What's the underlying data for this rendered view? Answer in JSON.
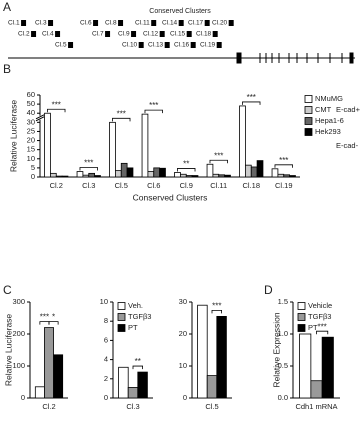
{
  "panel_labels": [
    "A",
    "B",
    "C",
    "D"
  ],
  "diagram": {
    "title": "Conserved Clusters",
    "clusters": [
      "Cl.1",
      "Cl.2",
      "Cl.3",
      "Cl.4",
      "Cl.5",
      "Cl.6",
      "Cl.7",
      "Cl.8",
      "Cl.9",
      "Cl.10",
      "Cl.11",
      "Cl.12",
      "Cl.13",
      "Cl.14",
      "Cl.15",
      "Cl.16",
      "Cl.17",
      "Cl.18",
      "Cl.19",
      "Cl.20"
    ]
  },
  "chart_data": [
    {
      "type": "bar",
      "ylabel": "Relative Luciferase",
      "xlabel": "Conserved Clusters",
      "categories": [
        "Cl.2",
        "Cl.3",
        "Cl.5",
        "Cl.6",
        "Cl.9",
        "Cl.11",
        "Cl.18",
        "Cl.19"
      ],
      "series": [
        {
          "name": "NMuMG",
          "color": "#ffffff",
          "values": [
            40,
            3,
            30,
            39,
            2.5,
            7,
            48,
            4.5
          ]
        },
        {
          "name": "CMT",
          "color": "#cccccc",
          "values": [
            2,
            1,
            3.5,
            3,
            1.5,
            1.5,
            6.5,
            1.5
          ]
        },
        {
          "name": "Hepa1-6",
          "color": "#666666",
          "values": [
            0.5,
            2,
            7.5,
            5,
            0.8,
            1.2,
            5.5,
            1.2
          ]
        },
        {
          "name": "Hek293",
          "color": "#000000",
          "values": [
            0.5,
            0.8,
            5,
            4.8,
            0.8,
            1,
            9,
            0.8
          ]
        }
      ],
      "ylim": [
        0,
        60
      ],
      "yticks": [
        0,
        5,
        10,
        15,
        20,
        25,
        30,
        40,
        50,
        60
      ],
      "y_axis_break": true,
      "legend": "right",
      "annotations": [
        "E-cad+",
        "E-cad-"
      ],
      "significance": [
        "***",
        "***",
        "***",
        "***",
        "**",
        "***",
        "***",
        "***"
      ]
    },
    {
      "type": "bar",
      "ylabel": "Relative Luciferase",
      "categories": [
        "Cl.2"
      ],
      "series": [
        {
          "color": "#ffffff",
          "values": [
            35
          ]
        },
        {
          "color": "#999999",
          "values": [
            220
          ]
        },
        {
          "color": "#000000",
          "values": [
            135
          ]
        }
      ],
      "ylim": [
        0,
        300
      ],
      "yticks": [
        0,
        100,
        200,
        300
      ],
      "significance": [
        "***",
        "*"
      ]
    },
    {
      "type": "bar",
      "categories": [
        "Cl.3"
      ],
      "series": [
        {
          "name": "Veh.",
          "color": "#ffffff",
          "values": [
            3.2
          ]
        },
        {
          "name": "TGFβ3",
          "color": "#999999",
          "values": [
            1.1
          ]
        },
        {
          "name": "PT",
          "color": "#000000",
          "values": [
            2.7
          ]
        }
      ],
      "ylim": [
        0,
        10
      ],
      "yticks": [
        0,
        2,
        4,
        6,
        8,
        10
      ],
      "legend": "upper left",
      "significance": [
        null,
        "**"
      ]
    },
    {
      "type": "bar",
      "categories": [
        "Cl.5"
      ],
      "series": [
        {
          "color": "#ffffff",
          "values": [
            29
          ]
        },
        {
          "color": "#999999",
          "values": [
            7
          ]
        },
        {
          "color": "#000000",
          "values": [
            25.5
          ]
        }
      ],
      "ylim": [
        0,
        30
      ],
      "yticks": [
        0,
        10,
        20,
        30
      ],
      "significance": [
        null,
        "***"
      ]
    },
    {
      "type": "bar",
      "ylabel": "Relative Expression",
      "categories": [
        "Cdh1 mRNA"
      ],
      "series": [
        {
          "name": "Vehicle",
          "color": "#ffffff",
          "values": [
            1.0
          ]
        },
        {
          "name": "TGFβ3",
          "color": "#999999",
          "values": [
            0.27
          ]
        },
        {
          "name": "PT",
          "color": "#000000",
          "values": [
            0.95
          ]
        }
      ],
      "ylim": [
        0,
        1.5
      ],
      "yticks": [
        {
          "value": 0,
          "label": "0.0"
        },
        {
          "value": 0.5,
          "label": "0.5"
        },
        {
          "value": 1,
          "label": "1.0"
        },
        {
          "value": 1.5,
          "label": "1.5"
        }
      ],
      "legend": "upper left",
      "significance": [
        null,
        "***"
      ]
    }
  ]
}
